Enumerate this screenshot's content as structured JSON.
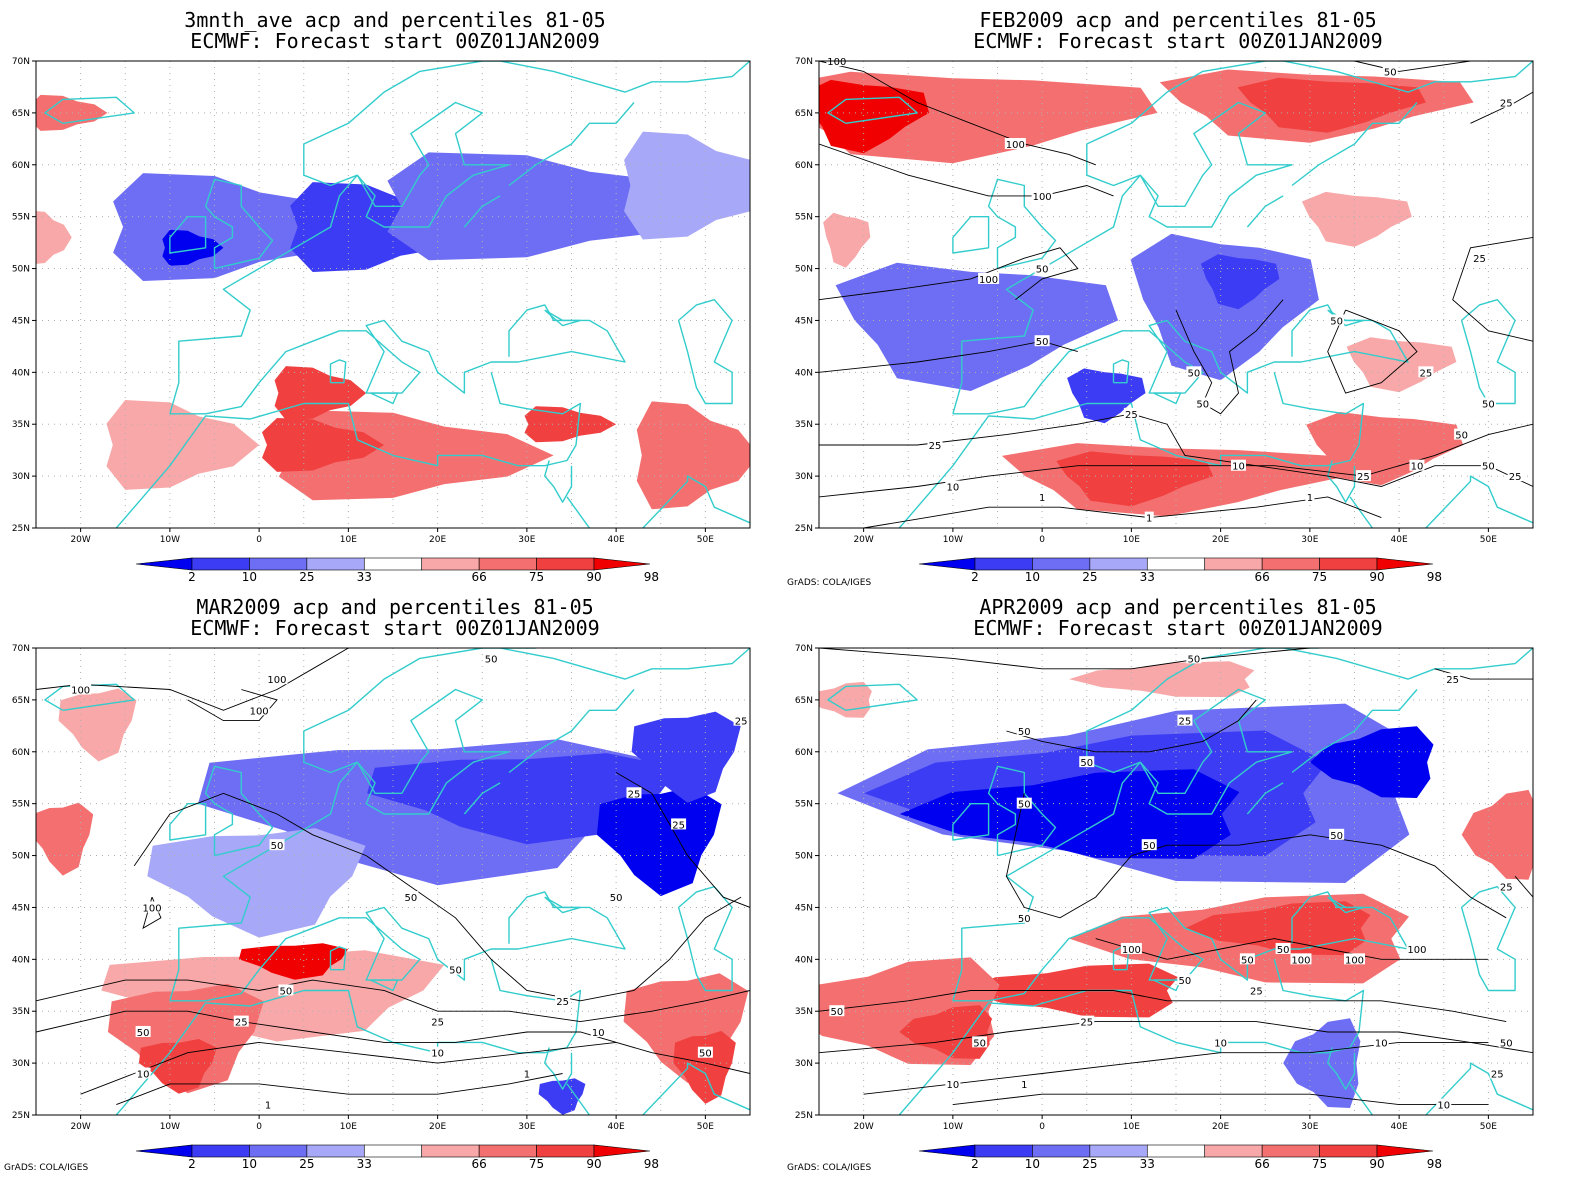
{
  "panels": [
    {
      "id": "panel-3mnth",
      "title1": "3mnth_ave acp and percentiles 81-05",
      "title2": "ECMWF: Forecast start 00Z01JAN2009",
      "credit": "",
      "contour_labels": [],
      "blobs": [
        {
          "lon": -5,
          "lat": 54,
          "rx": 16,
          "ry": 6,
          "level": "p25"
        },
        {
          "lon": 12,
          "lat": 54,
          "rx": 12,
          "ry": 5,
          "level": "p10"
        },
        {
          "lon": 30,
          "lat": 56,
          "rx": 22,
          "ry": 6,
          "level": "p25"
        },
        {
          "lon": 48,
          "lat": 58,
          "rx": 10,
          "ry": 6,
          "level": "p33"
        },
        {
          "lon": -8,
          "lat": 52,
          "rx": 4,
          "ry": 2,
          "level": "p2"
        },
        {
          "lon": 15,
          "lat": 32,
          "rx": 18,
          "ry": 5,
          "level": "p75"
        },
        {
          "lon": 6,
          "lat": 33,
          "rx": 8,
          "ry": 3,
          "level": "p90"
        },
        {
          "lon": -10,
          "lat": 33,
          "rx": 10,
          "ry": 5,
          "level": "p66"
        },
        {
          "lon": 48,
          "lat": 32,
          "rx": 8,
          "ry": 6,
          "level": "p75"
        },
        {
          "lon": 34,
          "lat": 35,
          "rx": 6,
          "ry": 2,
          "level": "p90"
        },
        {
          "lon": -22,
          "lat": 65,
          "rx": 5,
          "ry": 2,
          "level": "p75"
        },
        {
          "lon": -24,
          "lat": 53,
          "rx": 3,
          "ry": 3,
          "level": "p66"
        },
        {
          "lon": 6,
          "lat": 38,
          "rx": 6,
          "ry": 3,
          "level": "p90"
        }
      ]
    },
    {
      "id": "panel-feb",
      "title1": "FEB2009 acp and percentiles 81-05",
      "title2": "ECMWF: Forecast start 00Z01JAN2009",
      "credit": "GrADS: COLA/IGES",
      "contour_labels": [
        {
          "text": "100",
          "lon": -23,
          "lat": 70
        },
        {
          "text": "100",
          "lon": -3,
          "lat": 62
        },
        {
          "text": "100",
          "lon": 0,
          "lat": 57
        },
        {
          "text": "100",
          "lon": -6,
          "lat": 49
        },
        {
          "text": "50",
          "lon": 0,
          "lat": 50
        },
        {
          "text": "50",
          "lon": 39,
          "lat": 69
        },
        {
          "text": "25",
          "lon": 52,
          "lat": 66
        },
        {
          "text": "25",
          "lon": 49,
          "lat": 51
        },
        {
          "text": "50",
          "lon": 33,
          "lat": 45
        },
        {
          "text": "50",
          "lon": 17,
          "lat": 40
        },
        {
          "text": "50",
          "lon": 0,
          "lat": 43
        },
        {
          "text": "25",
          "lon": 43,
          "lat": 40
        },
        {
          "text": "50",
          "lon": 50,
          "lat": 37
        },
        {
          "text": "50",
          "lon": 47,
          "lat": 34
        },
        {
          "text": "50",
          "lon": 18,
          "lat": 37
        },
        {
          "text": "25",
          "lon": 10,
          "lat": 36
        },
        {
          "text": "25",
          "lon": -12,
          "lat": 33
        },
        {
          "text": "50",
          "lon": 50,
          "lat": 31
        },
        {
          "text": "25",
          "lon": 36,
          "lat": 30
        },
        {
          "text": "10",
          "lon": 42,
          "lat": 31
        },
        {
          "text": "10",
          "lon": 22,
          "lat": 31
        },
        {
          "text": "10",
          "lon": -10,
          "lat": 29
        },
        {
          "text": "25",
          "lon": 53,
          "lat": 30
        },
        {
          "text": "1",
          "lon": 30,
          "lat": 28
        },
        {
          "text": "1",
          "lon": 0,
          "lat": 28
        },
        {
          "text": "1",
          "lon": 12,
          "lat": 26
        }
      ],
      "blobs": [
        {
          "lon": -10,
          "lat": 65,
          "rx": 25,
          "ry": 5,
          "level": "p75"
        },
        {
          "lon": -20,
          "lat": 65,
          "rx": 8,
          "ry": 4,
          "level": "p98"
        },
        {
          "lon": 30,
          "lat": 66,
          "rx": 20,
          "ry": 4,
          "level": "p75"
        },
        {
          "lon": 32,
          "lat": 66,
          "rx": 12,
          "ry": 3,
          "level": "p90"
        },
        {
          "lon": -8,
          "lat": 45,
          "rx": 18,
          "ry": 7,
          "level": "p25"
        },
        {
          "lon": 20,
          "lat": 47,
          "rx": 12,
          "ry": 8,
          "level": "p25"
        },
        {
          "lon": 22,
          "lat": 49,
          "rx": 5,
          "ry": 3,
          "level": "p10"
        },
        {
          "lon": 7,
          "lat": 38,
          "rx": 5,
          "ry": 3,
          "level": "p10"
        },
        {
          "lon": 14,
          "lat": 30,
          "rx": 22,
          "ry": 4,
          "level": "p75"
        },
        {
          "lon": 10,
          "lat": 30,
          "rx": 10,
          "ry": 3,
          "level": "p90"
        },
        {
          "lon": 38,
          "lat": 33,
          "rx": 10,
          "ry": 4,
          "level": "p75"
        },
        {
          "lon": 40,
          "lat": 41,
          "rx": 7,
          "ry": 3,
          "level": "p66"
        },
        {
          "lon": 35,
          "lat": 55,
          "rx": 7,
          "ry": 3,
          "level": "p66"
        },
        {
          "lon": -22,
          "lat": 53,
          "rx": 3,
          "ry": 3,
          "level": "p66"
        }
      ]
    },
    {
      "id": "panel-mar",
      "title1": "MAR2009 acp and percentiles 81-05",
      "title2": "ECMWF: Forecast start 00Z01JAN2009",
      "credit": "GrADS: COLA/IGES",
      "contour_labels": [
        {
          "text": "100",
          "lon": -20,
          "lat": 66
        },
        {
          "text": "100",
          "lon": 2,
          "lat": 67
        },
        {
          "text": "100",
          "lon": 0,
          "lat": 64
        },
        {
          "text": "50",
          "lon": 26,
          "lat": 69
        },
        {
          "text": "25",
          "lon": 54,
          "lat": 63
        },
        {
          "text": "25",
          "lon": 42,
          "lat": 56
        },
        {
          "text": "25",
          "lon": 47,
          "lat": 53
        },
        {
          "text": "50",
          "lon": 2,
          "lat": 51
        },
        {
          "text": "50",
          "lon": 17,
          "lat": 46
        },
        {
          "text": "50",
          "lon": 40,
          "lat": 46
        },
        {
          "text": "100",
          "lon": -12,
          "lat": 45
        },
        {
          "text": "50",
          "lon": 22,
          "lat": 39
        },
        {
          "text": "50",
          "lon": 3,
          "lat": 37
        },
        {
          "text": "25",
          "lon": 34,
          "lat": 36
        },
        {
          "text": "25",
          "lon": 20,
          "lat": 34
        },
        {
          "text": "50",
          "lon": -13,
          "lat": 33
        },
        {
          "text": "25",
          "lon": -2,
          "lat": 34
        },
        {
          "text": "10",
          "lon": 20,
          "lat": 31
        },
        {
          "text": "10",
          "lon": 38,
          "lat": 33
        },
        {
          "text": "50",
          "lon": 50,
          "lat": 31
        },
        {
          "text": "10",
          "lon": -13,
          "lat": 29
        },
        {
          "text": "1",
          "lon": 30,
          "lat": 29
        },
        {
          "text": "1",
          "lon": 1,
          "lat": 26
        }
      ],
      "blobs": [
        {
          "lon": 20,
          "lat": 55,
          "rx": 30,
          "ry": 8,
          "level": "p25"
        },
        {
          "lon": 30,
          "lat": 56,
          "rx": 20,
          "ry": 5,
          "level": "p10"
        },
        {
          "lon": 45,
          "lat": 52,
          "rx": 8,
          "ry": 6,
          "level": "p2"
        },
        {
          "lon": 48,
          "lat": 60,
          "rx": 7,
          "ry": 5,
          "level": "p10"
        },
        {
          "lon": 0,
          "lat": 48,
          "rx": 14,
          "ry": 6,
          "level": "p33"
        },
        {
          "lon": 2,
          "lat": 37,
          "rx": 22,
          "ry": 5,
          "level": "p66"
        },
        {
          "lon": 4,
          "lat": 40,
          "rx": 7,
          "ry": 2,
          "level": "p98"
        },
        {
          "lon": -8,
          "lat": 33,
          "rx": 10,
          "ry": 6,
          "level": "p75"
        },
        {
          "lon": -9,
          "lat": 30,
          "rx": 5,
          "ry": 3,
          "level": "p90"
        },
        {
          "lon": 48,
          "lat": 34,
          "rx": 8,
          "ry": 6,
          "level": "p75"
        },
        {
          "lon": 50,
          "lat": 30,
          "rx": 4,
          "ry": 4,
          "level": "p90"
        },
        {
          "lon": -22,
          "lat": 52,
          "rx": 4,
          "ry": 4,
          "level": "p75"
        },
        {
          "lon": -18,
          "lat": 63,
          "rx": 5,
          "ry": 4,
          "level": "p66"
        },
        {
          "lon": 34,
          "lat": 27,
          "rx": 3,
          "ry": 2,
          "level": "p10"
        }
      ]
    },
    {
      "id": "panel-apr",
      "title1": "APR2009 acp and percentiles 81-05",
      "title2": "ECMWF: Forecast start 00Z01JAN2009",
      "credit": "GrADS: COLA/IGES",
      "contour_labels": [
        {
          "text": "50",
          "lon": 17,
          "lat": 69
        },
        {
          "text": "25",
          "lon": 46,
          "lat": 67
        },
        {
          "text": "25",
          "lon": 16,
          "lat": 63
        },
        {
          "text": "50",
          "lon": -2,
          "lat": 62
        },
        {
          "text": "50",
          "lon": 5,
          "lat": 59
        },
        {
          "text": "50",
          "lon": -2,
          "lat": 55
        },
        {
          "text": "50",
          "lon": 12,
          "lat": 51
        },
        {
          "text": "50",
          "lon": 33,
          "lat": 52
        },
        {
          "text": "50",
          "lon": -2,
          "lat": 44
        },
        {
          "text": "25",
          "lon": 52,
          "lat": 47
        },
        {
          "text": "100",
          "lon": 10,
          "lat": 41
        },
        {
          "text": "50",
          "lon": 23,
          "lat": 40
        },
        {
          "text": "100",
          "lon": 42,
          "lat": 41
        },
        {
          "text": "100",
          "lon": 35,
          "lat": 40
        },
        {
          "text": "100",
          "lon": 29,
          "lat": 40
        },
        {
          "text": "50",
          "lon": 16,
          "lat": 38
        },
        {
          "text": "50",
          "lon": 27,
          "lat": 41
        },
        {
          "text": "25",
          "lon": 24,
          "lat": 37
        },
        {
          "text": "50",
          "lon": -23,
          "lat": 35
        },
        {
          "text": "25",
          "lon": 5,
          "lat": 34
        },
        {
          "text": "50",
          "lon": -7,
          "lat": 32
        },
        {
          "text": "10",
          "lon": 20,
          "lat": 32
        },
        {
          "text": "10",
          "lon": 38,
          "lat": 32
        },
        {
          "text": "50",
          "lon": 52,
          "lat": 32
        },
        {
          "text": "25",
          "lon": 51,
          "lat": 29
        },
        {
          "text": "10",
          "lon": -10,
          "lat": 28
        },
        {
          "text": "1",
          "lon": -2,
          "lat": 28
        },
        {
          "text": "10",
          "lon": 45,
          "lat": 26
        }
      ],
      "blobs": [
        {
          "lon": 15,
          "lat": 56,
          "rx": 38,
          "ry": 10,
          "level": "p25"
        },
        {
          "lon": 10,
          "lat": 56,
          "rx": 30,
          "ry": 7,
          "level": "p10"
        },
        {
          "lon": 6,
          "lat": 54,
          "rx": 22,
          "ry": 5,
          "level": "p2"
        },
        {
          "lon": 38,
          "lat": 59,
          "rx": 8,
          "ry": 4,
          "level": "p2"
        },
        {
          "lon": 25,
          "lat": 42,
          "rx": 22,
          "ry": 5,
          "level": "p75"
        },
        {
          "lon": 28,
          "lat": 43,
          "rx": 12,
          "ry": 3,
          "level": "p90"
        },
        {
          "lon": 5,
          "lat": 37,
          "rx": 14,
          "ry": 3,
          "level": "p90"
        },
        {
          "lon": -15,
          "lat": 35,
          "rx": 14,
          "ry": 6,
          "level": "p75"
        },
        {
          "lon": -10,
          "lat": 33,
          "rx": 6,
          "ry": 3,
          "level": "p90"
        },
        {
          "lon": 32,
          "lat": 30,
          "rx": 5,
          "ry": 5,
          "level": "p25"
        },
        {
          "lon": 52,
          "lat": 52,
          "rx": 5,
          "ry": 5,
          "level": "p75"
        },
        {
          "lon": 15,
          "lat": 67,
          "rx": 12,
          "ry": 2,
          "level": "p66"
        },
        {
          "lon": -22,
          "lat": 65,
          "rx": 4,
          "ry": 2,
          "level": "p66"
        }
      ]
    }
  ],
  "axes": {
    "lon_ticks": [
      "20W",
      "10W",
      "0",
      "10E",
      "20E",
      "30E",
      "40E",
      "50E"
    ],
    "lat_ticks": [
      "25N",
      "30N",
      "35N",
      "40N",
      "45N",
      "50N",
      "55N",
      "60N",
      "65N",
      "70N"
    ]
  },
  "legend": {
    "labels": [
      "2",
      "10",
      "25",
      "33",
      "66",
      "75",
      "90",
      "98"
    ],
    "colors": {
      "p2": "#0000f0",
      "p10": "#3c3cf4",
      "p25": "#6e6ef4",
      "p33": "#a8a8f8",
      "mid": "#ffffff",
      "p66": "#f8a8a8",
      "p75": "#f47070",
      "p90": "#f04040",
      "p98": "#f00000"
    }
  },
  "styles": {
    "coast": "#33cccc",
    "contour": "#000000",
    "grid": "#b0b0b0"
  }
}
